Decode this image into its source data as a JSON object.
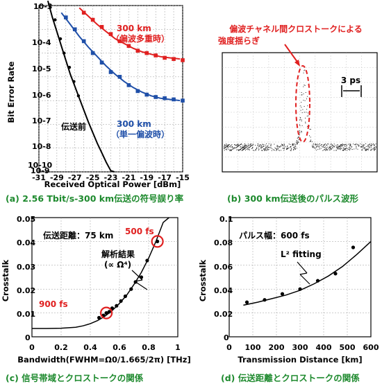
{
  "chart_data": [
    {
      "type": "scatter",
      "caption": "(a) 2.56 Tbit/s-300 km伝送の符号誤り率",
      "xlabel": "Received Optical Power [dBm]",
      "ylabel": "Bit Error Rate",
      "xlim": [
        -31,
        -15
      ],
      "ylim_log10": [
        -10,
        -3
      ],
      "y_scale": "log",
      "x_ticks": [
        "-31",
        "-29",
        "-27",
        "-25",
        "-23",
        "-21",
        "-19",
        "-17",
        "-15"
      ],
      "y_ticks": [
        "10-3",
        "10-4",
        "10-5",
        "10-6",
        "10-7",
        "10-8",
        "10-9",
        "10-10"
      ],
      "grid": true,
      "series": [
        {
          "name": "伝送前",
          "color": "#000000",
          "marker": "circle",
          "x": [
            -29.2,
            -28.6,
            -28.2,
            -27.6,
            -27.1,
            -26.6
          ],
          "y_log10": [
            -3.6,
            -4.4,
            -5.0,
            -5.6,
            -6.2,
            -6.8
          ],
          "fit_x": [
            -30.0,
            -29.5,
            -29.0,
            -28.5,
            -28.0,
            -27.5,
            -27.0,
            -26.5,
            -26.0,
            -25.5,
            -25.0,
            -24.5,
            -24.0,
            -23.5,
            -23.0,
            -22.6
          ],
          "fit_y_log10": [
            -2.8,
            -3.5,
            -4.1,
            -4.7,
            -5.3,
            -5.9,
            -6.4,
            -6.9,
            -7.4,
            -7.9,
            -8.35,
            -8.8,
            -9.2,
            -9.6,
            -9.95,
            -10.0
          ]
        },
        {
          "name": "300 km（単一偏波時）",
          "color": "#1f4fa8",
          "marker": "square",
          "x": [
            -28.0,
            -27.0,
            -26.0,
            -25.0,
            -24.0,
            -23.0,
            -22.0,
            -21.0,
            -20.0,
            -19.0,
            -18.0,
            -17.0,
            -16.0,
            -15.0
          ],
          "y_log10": [
            -3.5,
            -4.0,
            -4.5,
            -5.0,
            -5.4,
            -5.8,
            -6.0,
            -6.35,
            -6.6,
            -6.75,
            -6.85,
            -6.9,
            -6.95,
            -7.0
          ],
          "fit_x": [
            -28.5,
            -27.5,
            -26.5,
            -25.5,
            -24.5,
            -23.5,
            -22.5,
            -21.5,
            -20.5,
            -19.5,
            -18.5,
            -17.5,
            -16.5,
            -15.3
          ],
          "fit_y_log10": [
            -3.3,
            -3.8,
            -4.3,
            -4.75,
            -5.15,
            -5.55,
            -5.9,
            -6.2,
            -6.45,
            -6.65,
            -6.8,
            -6.9,
            -6.95,
            -7.0
          ]
        },
        {
          "name": "300 km（偏波多重時）",
          "color": "#e02020",
          "marker": "square",
          "x": [
            -26.0,
            -25.0,
            -24.0,
            -23.0,
            -22.0,
            -21.0,
            -20.0,
            -19.0,
            -18.0,
            -17.0,
            -16.0,
            -15.0
          ],
          "y_log10": [
            -3.3,
            -3.6,
            -3.9,
            -4.2,
            -4.5,
            -4.7,
            -4.9,
            -5.0,
            -5.1,
            -5.2,
            -5.25,
            -5.3
          ],
          "fit_x": [
            -26.5,
            -25.5,
            -24.5,
            -23.5,
            -22.5,
            -21.5,
            -20.5,
            -19.5,
            -18.5,
            -17.5,
            -16.5,
            -15.3
          ],
          "fit_y_log10": [
            -3.1,
            -3.45,
            -3.8,
            -4.1,
            -4.4,
            -4.6,
            -4.8,
            -4.95,
            -5.05,
            -5.15,
            -5.2,
            -5.25
          ]
        }
      ],
      "annotations": {
        "before": "伝送前",
        "blue_line1": "300 km",
        "blue_line2": "（単一偏波時）",
        "red_line1": "300 km",
        "red_line2": "（偏波多重時）"
      }
    },
    {
      "type": "line",
      "caption": "(b) 300 km伝送後のパルス波形",
      "annotation_line1": "偏波チャネル間クロストークによる",
      "annotation_line2": "強度揺らぎ",
      "scale_label": "3 ps"
    },
    {
      "type": "scatter",
      "caption": "(c) 信号帯域とクロストークの関係",
      "xlabel": "Bandwidth(FWHM=Ω0/1.665/2π) [THz]",
      "ylabel": "Crosstalk",
      "xlim": [
        0,
        1.0
      ],
      "ylim": [
        0,
        0.05
      ],
      "x_ticks": [
        "0",
        "0.2",
        "0.4",
        "0.6",
        "0.8",
        "1"
      ],
      "y_ticks": [
        "0",
        "0.01",
        "0.02",
        "0.03",
        "0.04",
        "0.05"
      ],
      "points_x": [
        0.46,
        0.49,
        0.51,
        0.53,
        0.55,
        0.58,
        0.61,
        0.64,
        0.68,
        0.71,
        0.75,
        0.79,
        0.86
      ],
      "points_y": [
        0.008,
        0.009,
        0.01,
        0.0105,
        0.012,
        0.013,
        0.015,
        0.017,
        0.02,
        0.023,
        0.025,
        0.032,
        0.04
      ],
      "fit_x": [
        0.0,
        0.1,
        0.2,
        0.3,
        0.35,
        0.4,
        0.45,
        0.5,
        0.55,
        0.6,
        0.65,
        0.7,
        0.75,
        0.8,
        0.85,
        0.9,
        0.94
      ],
      "fit_y": [
        0.0035,
        0.0035,
        0.0036,
        0.004,
        0.0046,
        0.0055,
        0.0068,
        0.0086,
        0.011,
        0.014,
        0.0175,
        0.022,
        0.027,
        0.033,
        0.04,
        0.048,
        0.055
      ],
      "title_text": "伝送距離：75 km",
      "fit_label_line1": "解析結果",
      "fit_label_line2": "(∝ Ω⁴)",
      "label_500": "500 fs",
      "label_900": "900 fs",
      "circled": [
        {
          "x": 0.86,
          "y": 0.04
        },
        {
          "x": 0.51,
          "y": 0.01
        }
      ]
    },
    {
      "type": "scatter",
      "caption": "(d) 伝送距離とクロストークの関係",
      "xlabel": "Transmission Distance [km]",
      "ylabel": "Crosstalk",
      "xlim": [
        0,
        600
      ],
      "ylim": [
        0,
        0.1
      ],
      "x_ticks": [
        "0",
        "100",
        "200",
        "300",
        "400",
        "500",
        "600"
      ],
      "y_ticks": [
        "0",
        "0.02",
        "0.04",
        "0.06",
        "0.08",
        "0.1"
      ],
      "points_x": [
        75,
        150,
        225,
        300,
        375,
        450,
        525
      ],
      "points_y": [
        0.029,
        0.031,
        0.036,
        0.04,
        0.047,
        0.053,
        0.075
      ],
      "fit_x": [
        60,
        120,
        180,
        240,
        300,
        360,
        420,
        480,
        540,
        600
      ],
      "fit_y": [
        0.0265,
        0.029,
        0.032,
        0.035,
        0.039,
        0.0445,
        0.051,
        0.059,
        0.069,
        0.08
      ],
      "title_text": "パルス幅：600 fs",
      "fit_label": "L² fitting"
    }
  ],
  "colors": {
    "caption": "#1e8a2e",
    "red": "#e02020",
    "blue": "#1f4fa8",
    "black": "#000000"
  }
}
